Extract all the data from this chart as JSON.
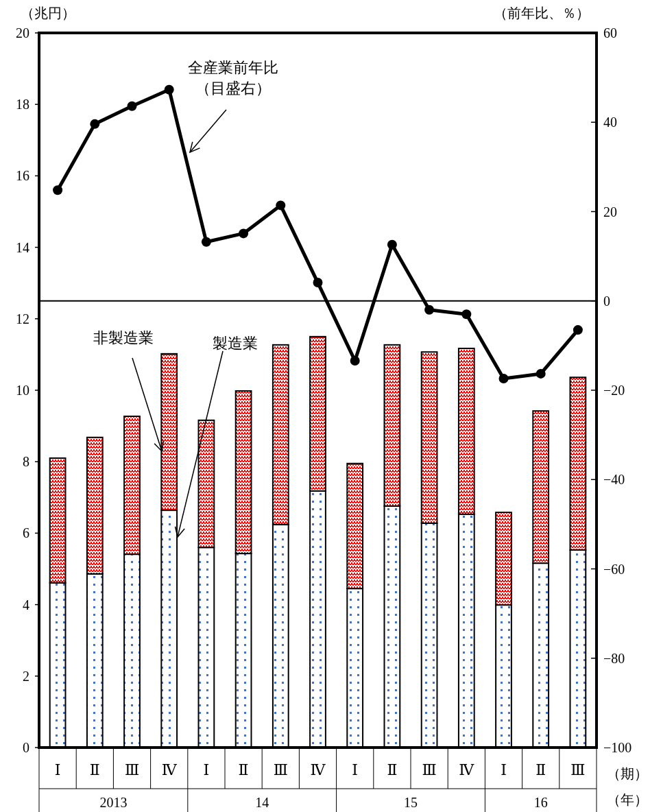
{
  "chart_data": {
    "type": "bar",
    "stacked": true,
    "ylabel": "（兆円）",
    "y2label": "（前年比、％）",
    "categories": [
      "Ⅰ",
      "Ⅱ",
      "Ⅲ",
      "Ⅳ",
      "Ⅰ",
      "Ⅱ",
      "Ⅲ",
      "Ⅳ",
      "Ⅰ",
      "Ⅱ",
      "Ⅲ",
      "Ⅳ",
      "Ⅰ",
      "Ⅱ",
      "Ⅲ"
    ],
    "series": [
      {
        "name": "製造業",
        "color": "#4472c4",
        "values": [
          4.61,
          4.86,
          5.41,
          6.64,
          5.6,
          5.43,
          6.24,
          7.18,
          4.45,
          6.76,
          6.28,
          6.53,
          3.99,
          5.16,
          5.53
        ]
      },
      {
        "name": "非製造業",
        "color": "#ff0000",
        "values": [
          3.49,
          3.82,
          3.86,
          4.38,
          3.56,
          4.55,
          5.03,
          4.32,
          3.5,
          4.51,
          4.79,
          4.64,
          2.59,
          4.26,
          4.83
        ]
      },
      {
        "name": "全産業前年比（目盛右）",
        "type": "line",
        "axis": "y2",
        "color": "#000000",
        "marker": "circle",
        "values": [
          24.8,
          39.6,
          43.6,
          47.3,
          13.2,
          15.1,
          21.4,
          4.1,
          -13.4,
          12.6,
          -2.0,
          -3.0,
          -17.4,
          -16.3,
          -6.5
        ]
      }
    ],
    "ylim": [
      0,
      20
    ],
    "yticks": [
      0,
      2,
      4,
      6,
      8,
      10,
      12,
      14,
      16,
      18,
      20
    ],
    "y2lim": [
      -100,
      60
    ],
    "y2ticks": [
      -100,
      -80,
      -60,
      -40,
      -20,
      0,
      20,
      40,
      60
    ],
    "ref_lines": [
      {
        "axis": "y2",
        "value": 0,
        "color": "#000000"
      }
    ],
    "annotations": [
      "2013",
      "14",
      "15",
      "16",
      "（期）",
      "（年）"
    ],
    "grid": false,
    "legend": false
  }
}
